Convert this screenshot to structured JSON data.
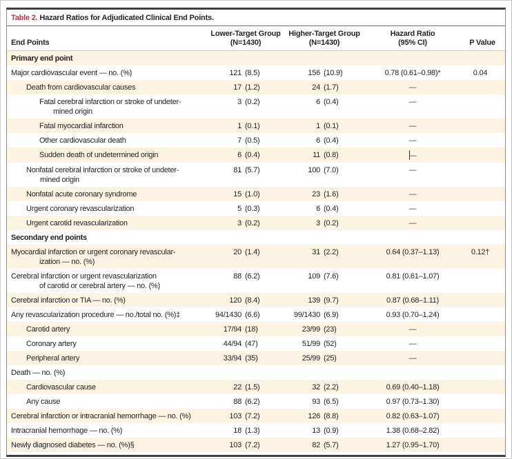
{
  "title": {
    "label": "Table 2.",
    "text": " Hazard Ratios for Adjudicated Clinical End Points."
  },
  "colors": {
    "accent_red": "#b5373e",
    "row_stripe": "#fdf3e3",
    "rule_dark": "#3e3e3e",
    "text": "#1f1f1f"
  },
  "header": {
    "end_points": "End Points",
    "lower_line1": "Lower-Target Group",
    "lower_line2": "(N=1430)",
    "higher_line1": "Higher-Target Group",
    "higher_line2": "(N=1430)",
    "hazard_line1": "Hazard Ratio",
    "hazard_line2": "(95% CI)",
    "p_value": "P Value"
  },
  "rows": [
    {
      "label": "Primary end point",
      "ind": 0,
      "section": true
    },
    {
      "label": "Major cardiovascular event — no. (%)",
      "ind": 0,
      "l": "121",
      "lp": "(8.5)",
      "h": "156",
      "hp": "(10.9)",
      "hr": "0.78 (0.61–0.98)*",
      "p": "0.04"
    },
    {
      "label": "Death from cardiovascular causes",
      "ind": 1,
      "l": "17",
      "lp": "(1.2)",
      "h": "24",
      "hp": "(1.7)",
      "dash": true
    },
    {
      "label": "Fatal cerebral infarction or stroke of undeter-\nmined origin",
      "ind": 2,
      "l": "3",
      "lp": "(0.2)",
      "h": "6",
      "hp": "(0.4)",
      "dash": true
    },
    {
      "label": "Fatal myocardial infarction",
      "ind": 2,
      "l": "1",
      "lp": "(0.1)",
      "h": "1",
      "hp": "(0.1)",
      "dash": true
    },
    {
      "label": "Other cardiovascular death",
      "ind": 2,
      "l": "7",
      "lp": "(0.5)",
      "h": "6",
      "hp": "(0.4)",
      "dash": true
    },
    {
      "label": "Sudden death of undetermined origin",
      "ind": 2,
      "l": "6",
      "lp": "(0.4)",
      "h": "11",
      "hp": "(0.8)",
      "dash": true,
      "caret": true
    },
    {
      "label": "Nonfatal cerebral infarction or stroke of undeter-\nmined origin",
      "ind": 1,
      "l": "81",
      "lp": "(5.7)",
      "h": "100",
      "hp": "(7.0)",
      "dash": true
    },
    {
      "label": "Nonfatal acute coronary syndrome",
      "ind": 1,
      "l": "15",
      "lp": "(1.0)",
      "h": "23",
      "hp": "(1.6)",
      "dash": true
    },
    {
      "label": "Urgent coronary revascularization",
      "ind": 1,
      "l": "5",
      "lp": "(0.3)",
      "h": "6",
      "hp": "(0.4)",
      "dash": true
    },
    {
      "label": "Urgent carotid revascularization",
      "ind": 1,
      "l": "3",
      "lp": "(0.2)",
      "h": "3",
      "hp": "(0.2)",
      "dash": true
    },
    {
      "label": "Secondary end points",
      "ind": 0,
      "section": true
    },
    {
      "label": "Myocardial infarction or urgent coronary revascular-\nization — no. (%)",
      "ind": 0,
      "l": "20",
      "lp": "(1.4)",
      "h": "31",
      "hp": "(2.2)",
      "hr": "0.64 (0.37–1.13)",
      "p": "0.12†"
    },
    {
      "label": "Cerebral infarction or urgent revascularization\nof carotid or cerebral artery — no. (%)",
      "ind": 0,
      "l": "88",
      "lp": "(6.2)",
      "h": "109",
      "hp": "(7.6)",
      "hr": "0.81 (0.61–1.07)"
    },
    {
      "label": "Cerebral infarction or TIA — no. (%)",
      "ind": 0,
      "l": "120",
      "lp": "(8.4)",
      "h": "139",
      "hp": "(9.7)",
      "hr": "0.87 (0.68–1.11)"
    },
    {
      "label": "Any revascularization procedure — no./total no. (%)‡",
      "ind": 0,
      "l": "94/1430",
      "lp": "(6.6)",
      "h": "99/1430",
      "hp": "(6.9)",
      "hr": "0.93 (0.70–1.24)"
    },
    {
      "label": "Carotid artery",
      "ind": 1,
      "l": "17/94",
      "lp": "(18)",
      "h": "23/99",
      "hp": "(23)",
      "dash": true
    },
    {
      "label": "Coronary artery",
      "ind": 1,
      "l": "44/94",
      "lp": "(47)",
      "h": "51/99",
      "hp": "(52)",
      "dash": true
    },
    {
      "label": "Peripheral artery",
      "ind": 1,
      "l": "33/94",
      "lp": "(35)",
      "h": "25/99",
      "hp": "(25)",
      "dash": true
    },
    {
      "label": "Death — no. (%)",
      "ind": 0
    },
    {
      "label": "Cardiovascular cause",
      "ind": 1,
      "l": "22",
      "lp": "(1.5)",
      "h": "32",
      "hp": "(2.2)",
      "hr": "0.69 (0.40–1.18)"
    },
    {
      "label": "Any cause",
      "ind": 1,
      "l": "88",
      "lp": "(6.2)",
      "h": "93",
      "hp": "(6.5)",
      "hr": "0.97 (0.73–1.30)"
    },
    {
      "label": "Cerebral infarction or intracranial hemorrhage — no. (%)",
      "ind": 0,
      "l": "103",
      "lp": "(7.2)",
      "h": "126",
      "hp": "(8.8)",
      "hr": "0.82 (0.63–1.07)"
    },
    {
      "label": "Intracranial hemorrhage — no. (%)",
      "ind": 0,
      "l": "18",
      "lp": "(1.3)",
      "h": "13",
      "hp": "(0.9)",
      "hr": "1.38 (0.68–2.82)"
    },
    {
      "label": "Newly diagnosed diabetes — no. (%)§",
      "ind": 0,
      "l": "103",
      "lp": "(7.2)",
      "h": "82",
      "hp": "(5.7)",
      "hr": "1.27 (0.95–1.70)"
    }
  ]
}
